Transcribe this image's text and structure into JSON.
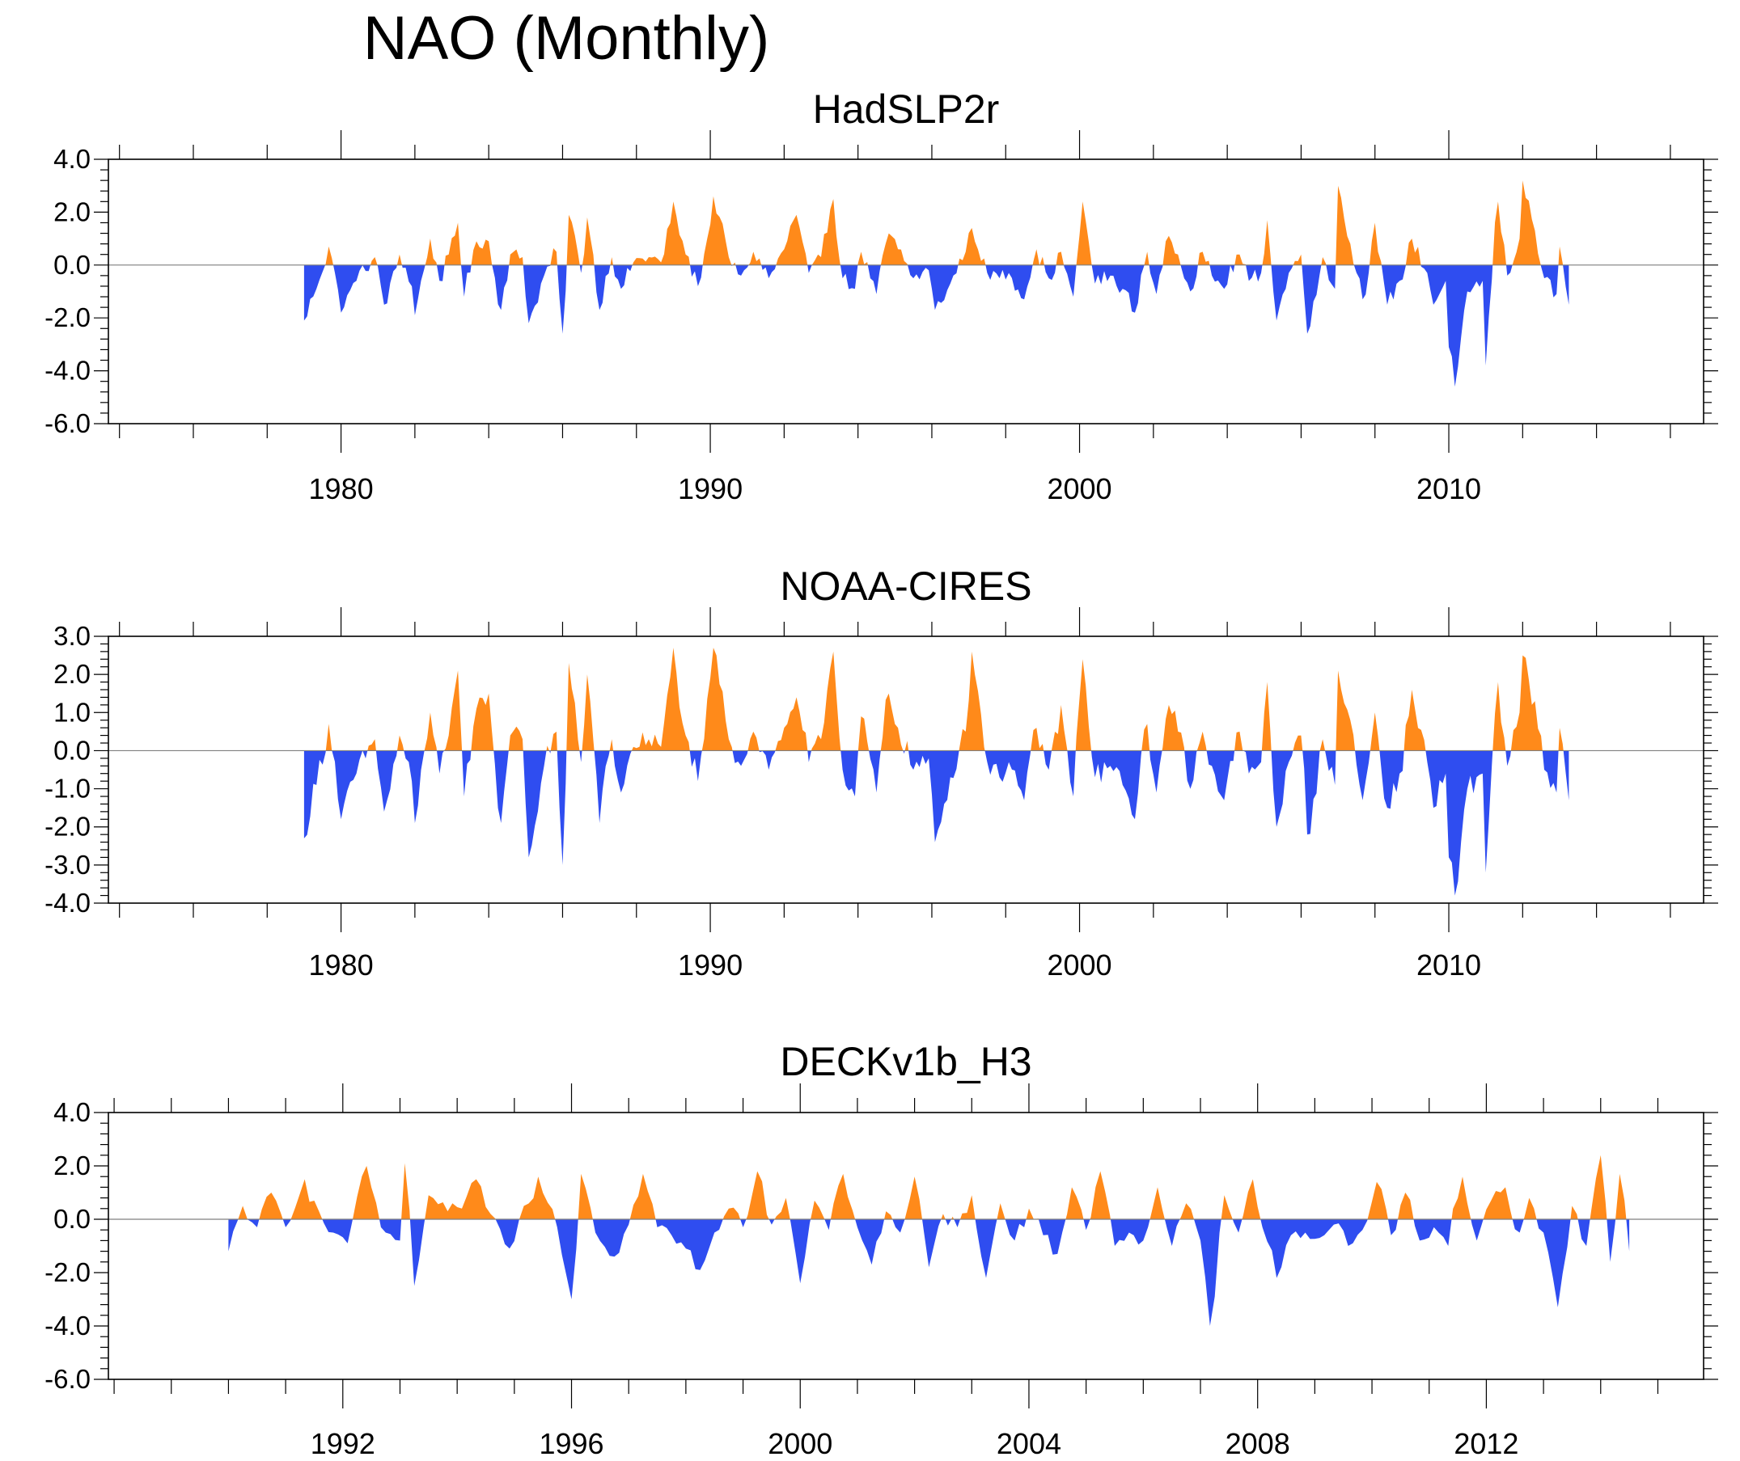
{
  "title": "NAO (Monthly)",
  "colors": {
    "positive": "#ff8a1a",
    "negative": "#2f4df0",
    "axis": "#000000"
  },
  "chart_data": [
    {
      "type": "area",
      "title": "HadSLP2r",
      "x_start": 1979.0,
      "x_end": 2013.25,
      "xlim": [
        1973.7,
        2016.9
      ],
      "xticks": [
        1980,
        1990,
        2000,
        2010
      ],
      "ylim": [
        -6.0,
        4.0
      ],
      "yticks": [
        "4.0",
        "2.0",
        "0.0",
        "-2.0",
        "-4.0",
        "-6.0"
      ],
      "ytick_values": [
        4,
        2,
        0,
        -2,
        -4,
        -6
      ],
      "anchors": [
        [
          1979.0,
          -2.1
        ],
        [
          1979.3,
          -0.9
        ],
        [
          1979.7,
          0.7
        ],
        [
          1980.0,
          -1.8
        ],
        [
          1980.4,
          -0.6
        ],
        [
          1980.9,
          0.3
        ],
        [
          1981.2,
          -1.5
        ],
        [
          1981.6,
          0.4
        ],
        [
          1981.9,
          -0.8
        ],
        [
          1982.0,
          -1.9
        ],
        [
          1982.4,
          1.0
        ],
        [
          1982.7,
          -0.6
        ],
        [
          1982.9,
          0.4
        ],
        [
          1983.2,
          1.6
        ],
        [
          1983.3,
          -1.2
        ],
        [
          1983.7,
          0.9
        ],
        [
          1984.0,
          0.9
        ],
        [
          1984.3,
          -1.7
        ],
        [
          1984.6,
          0.4
        ],
        [
          1984.9,
          0.3
        ],
        [
          1985.1,
          -2.2
        ],
        [
          1985.5,
          -0.4
        ],
        [
          1985.8,
          0.5
        ],
        [
          1986.0,
          -2.6
        ],
        [
          1986.2,
          1.9
        ],
        [
          1986.5,
          -0.3
        ],
        [
          1986.7,
          1.8
        ],
        [
          1987.0,
          -1.7
        ],
        [
          1987.3,
          0.3
        ],
        [
          1987.6,
          -0.9
        ],
        [
          1987.9,
          0.1
        ],
        [
          1988.3,
          0.3
        ],
        [
          1988.7,
          0.1
        ],
        [
          1989.0,
          2.4
        ],
        [
          1989.3,
          0.4
        ],
        [
          1989.7,
          -0.8
        ],
        [
          1990.1,
          2.6
        ],
        [
          1990.5,
          0.3
        ],
        [
          1990.8,
          -0.4
        ],
        [
          1991.2,
          0.5
        ],
        [
          1991.6,
          -0.5
        ],
        [
          1992.0,
          0.6
        ],
        [
          1992.3,
          1.9
        ],
        [
          1992.7,
          -0.3
        ],
        [
          1993.0,
          0.3
        ],
        [
          1993.3,
          2.5
        ],
        [
          1993.6,
          -0.5
        ],
        [
          1993.9,
          -0.9
        ],
        [
          1994.1,
          0.5
        ],
        [
          1994.5,
          -1.1
        ],
        [
          1994.8,
          1.2
        ],
        [
          1995.1,
          0.6
        ],
        [
          1995.5,
          -0.5
        ],
        [
          1995.9,
          -0.2
        ],
        [
          1996.1,
          -1.7
        ],
        [
          1996.5,
          -0.7
        ],
        [
          1996.9,
          0.5
        ],
        [
          1997.1,
          1.4
        ],
        [
          1997.5,
          -0.3
        ],
        [
          1997.8,
          -0.5
        ],
        [
          1998.1,
          -0.3
        ],
        [
          1998.5,
          -1.3
        ],
        [
          1998.8,
          0.6
        ],
        [
          1999.2,
          -0.5
        ],
        [
          1999.5,
          0.5
        ],
        [
          1999.8,
          -1.2
        ],
        [
          2000.1,
          2.4
        ],
        [
          2000.4,
          -0.7
        ],
        [
          2000.8,
          -0.4
        ],
        [
          2001.2,
          -0.9
        ],
        [
          2001.5,
          -1.8
        ],
        [
          2001.8,
          0.5
        ],
        [
          2002.1,
          -1.1
        ],
        [
          2002.4,
          1.1
        ],
        [
          2002.7,
          0.4
        ],
        [
          2003.0,
          -1.0
        ],
        [
          2003.3,
          0.5
        ],
        [
          2003.6,
          -0.4
        ],
        [
          2003.9,
          -0.9
        ],
        [
          2004.3,
          0.4
        ],
        [
          2004.6,
          -0.6
        ],
        [
          2004.9,
          -0.3
        ],
        [
          2005.1,
          1.7
        ],
        [
          2005.3,
          -2.1
        ],
        [
          2005.7,
          -0.3
        ],
        [
          2006.0,
          0.4
        ],
        [
          2006.2,
          -2.6
        ],
        [
          2006.6,
          0.3
        ],
        [
          2006.9,
          -0.9
        ],
        [
          2007.0,
          3.0
        ],
        [
          2007.3,
          0.8
        ],
        [
          2007.7,
          -1.3
        ],
        [
          2008.0,
          1.6
        ],
        [
          2008.3,
          -1.5
        ],
        [
          2008.7,
          -0.6
        ],
        [
          2009.0,
          1.0
        ],
        [
          2009.4,
          -0.3
        ],
        [
          2009.6,
          -1.5
        ],
        [
          2009.9,
          -0.6
        ],
        [
          2010.0,
          -3.1
        ],
        [
          2010.2,
          -4.6
        ],
        [
          2010.5,
          -1.0
        ],
        [
          2010.9,
          -0.6
        ],
        [
          2011.0,
          -3.8
        ],
        [
          2011.3,
          2.4
        ],
        [
          2011.6,
          -0.4
        ],
        [
          2011.9,
          1.0
        ],
        [
          2012.0,
          3.2
        ],
        [
          2012.3,
          1.3
        ],
        [
          2012.6,
          -0.5
        ],
        [
          2012.9,
          -1.1
        ],
        [
          2013.0,
          0.7
        ],
        [
          2013.25,
          -1.5
        ]
      ]
    },
    {
      "type": "area",
      "title": "NOAA-CIRES",
      "x_start": 1979.0,
      "x_end": 2013.25,
      "xlim": [
        1973.7,
        2016.9
      ],
      "xticks": [
        1980,
        1990,
        2000,
        2010
      ],
      "ylim": [
        -4.0,
        3.0
      ],
      "yticks": [
        "3.0",
        "2.0",
        "1.0",
        "0.0",
        "-1.0",
        "-2.0",
        "-3.0",
        "-4.0"
      ],
      "ytick_values": [
        3,
        2,
        1,
        0,
        -1,
        -2,
        -3,
        -4
      ],
      "anchors": [
        [
          1979.0,
          -2.3
        ],
        [
          1979.3,
          -0.9
        ],
        [
          1979.7,
          0.7
        ],
        [
          1980.0,
          -1.8
        ],
        [
          1980.4,
          -0.6
        ],
        [
          1980.9,
          0.3
        ],
        [
          1981.2,
          -1.6
        ],
        [
          1981.6,
          0.4
        ],
        [
          1981.9,
          -0.8
        ],
        [
          1982.0,
          -1.9
        ],
        [
          1982.4,
          1.0
        ],
        [
          1982.7,
          -0.6
        ],
        [
          1982.9,
          0.4
        ],
        [
          1983.2,
          2.1
        ],
        [
          1983.3,
          -1.2
        ],
        [
          1983.7,
          1.1
        ],
        [
          1984.0,
          1.5
        ],
        [
          1984.3,
          -1.9
        ],
        [
          1984.6,
          0.4
        ],
        [
          1984.9,
          0.3
        ],
        [
          1985.1,
          -2.8
        ],
        [
          1985.5,
          -0.4
        ],
        [
          1985.8,
          0.5
        ],
        [
          1986.0,
          -3.0
        ],
        [
          1986.2,
          2.3
        ],
        [
          1986.5,
          -0.3
        ],
        [
          1986.7,
          2.0
        ],
        [
          1987.0,
          -1.9
        ],
        [
          1987.3,
          0.3
        ],
        [
          1987.6,
          -1.1
        ],
        [
          1987.9,
          0.1
        ],
        [
          1988.3,
          0.3
        ],
        [
          1988.7,
          0.1
        ],
        [
          1989.0,
          2.7
        ],
        [
          1989.3,
          0.4
        ],
        [
          1989.7,
          -0.8
        ],
        [
          1990.1,
          2.7
        ],
        [
          1990.5,
          0.3
        ],
        [
          1990.8,
          -0.4
        ],
        [
          1991.2,
          0.5
        ],
        [
          1991.6,
          -0.5
        ],
        [
          1992.0,
          0.6
        ],
        [
          1992.3,
          1.4
        ],
        [
          1992.7,
          -0.3
        ],
        [
          1993.0,
          0.3
        ],
        [
          1993.3,
          2.6
        ],
        [
          1993.6,
          -0.5
        ],
        [
          1993.9,
          -1.2
        ],
        [
          1994.1,
          0.9
        ],
        [
          1994.5,
          -1.1
        ],
        [
          1994.8,
          1.5
        ],
        [
          1995.1,
          0.6
        ],
        [
          1995.5,
          -0.5
        ],
        [
          1995.9,
          -0.2
        ],
        [
          1996.1,
          -2.4
        ],
        [
          1996.5,
          -0.7
        ],
        [
          1996.9,
          0.5
        ],
        [
          1997.1,
          2.6
        ],
        [
          1997.5,
          -0.3
        ],
        [
          1997.8,
          -0.7
        ],
        [
          1998.1,
          -0.3
        ],
        [
          1998.5,
          -1.3
        ],
        [
          1998.8,
          0.6
        ],
        [
          1999.2,
          -0.5
        ],
        [
          1999.5,
          1.2
        ],
        [
          1999.8,
          -1.2
        ],
        [
          2000.1,
          2.4
        ],
        [
          2000.4,
          -0.7
        ],
        [
          2000.8,
          -0.4
        ],
        [
          2001.2,
          -0.9
        ],
        [
          2001.5,
          -1.8
        ],
        [
          2001.8,
          0.7
        ],
        [
          2002.1,
          -1.1
        ],
        [
          2002.4,
          1.2
        ],
        [
          2002.7,
          0.5
        ],
        [
          2003.0,
          -1.0
        ],
        [
          2003.3,
          0.5
        ],
        [
          2003.6,
          -0.4
        ],
        [
          2003.9,
          -1.3
        ],
        [
          2004.3,
          0.5
        ],
        [
          2004.6,
          -0.6
        ],
        [
          2004.9,
          -0.3
        ],
        [
          2005.1,
          1.8
        ],
        [
          2005.3,
          -2.0
        ],
        [
          2005.7,
          -0.3
        ],
        [
          2006.0,
          0.4
        ],
        [
          2006.2,
          -2.2
        ],
        [
          2006.6,
          0.3
        ],
        [
          2006.9,
          -0.9
        ],
        [
          2007.0,
          2.1
        ],
        [
          2007.3,
          0.8
        ],
        [
          2007.7,
          -1.3
        ],
        [
          2008.0,
          1.0
        ],
        [
          2008.3,
          -1.5
        ],
        [
          2008.7,
          -0.6
        ],
        [
          2009.0,
          1.6
        ],
        [
          2009.4,
          -0.3
        ],
        [
          2009.6,
          -1.5
        ],
        [
          2009.9,
          -0.6
        ],
        [
          2010.0,
          -2.8
        ],
        [
          2010.2,
          -3.8
        ],
        [
          2010.5,
          -1.0
        ],
        [
          2010.9,
          -0.6
        ],
        [
          2011.0,
          -3.2
        ],
        [
          2011.3,
          1.8
        ],
        [
          2011.6,
          -0.4
        ],
        [
          2011.9,
          1.0
        ],
        [
          2012.0,
          2.5
        ],
        [
          2012.3,
          1.3
        ],
        [
          2012.6,
          -0.5
        ],
        [
          2012.9,
          -1.1
        ],
        [
          2013.0,
          0.6
        ],
        [
          2013.25,
          -1.3
        ]
      ]
    },
    {
      "type": "area",
      "title": "DECKv1b_H3",
      "x_start": 1990.0,
      "x_end": 2014.5,
      "xlim": [
        1987.9,
        2015.8
      ],
      "xticks": [
        1992,
        1996,
        2000,
        2004,
        2008,
        2012
      ],
      "ylim": [
        -6.0,
        4.0
      ],
      "yticks": [
        "4.0",
        "2.0",
        "0.0",
        "-2.0",
        "-4.0",
        "-6.0"
      ],
      "ytick_values": [
        4,
        2,
        0,
        -2,
        -4,
        -6
      ],
      "anchors": [
        [
          1990.0,
          -1.2
        ],
        [
          1990.25,
          0.5
        ],
        [
          1990.5,
          -0.3
        ],
        [
          1990.75,
          1.0
        ],
        [
          1991.0,
          -0.3
        ],
        [
          1991.3,
          1.5
        ],
        [
          1991.55,
          0.3
        ],
        [
          1991.8,
          -0.5
        ],
        [
          1992.1,
          -0.9
        ],
        [
          1992.4,
          2.0
        ],
        [
          1992.7,
          -0.3
        ],
        [
          1993.0,
          -0.8
        ],
        [
          1993.1,
          2.1
        ],
        [
          1993.25,
          -2.5
        ],
        [
          1993.5,
          0.9
        ],
        [
          1993.8,
          0.3
        ],
        [
          1994.1,
          0.4
        ],
        [
          1994.35,
          1.5
        ],
        [
          1994.6,
          0.2
        ],
        [
          1994.9,
          -1.1
        ],
        [
          1995.2,
          0.5
        ],
        [
          1995.45,
          1.6
        ],
        [
          1995.75,
          -0.3
        ],
        [
          1996.0,
          -3.0
        ],
        [
          1996.2,
          1.7
        ],
        [
          1996.45,
          -0.5
        ],
        [
          1996.75,
          -1.4
        ],
        [
          1997.0,
          -0.2
        ],
        [
          1997.25,
          1.7
        ],
        [
          1997.5,
          -0.3
        ],
        [
          1997.75,
          -0.6
        ],
        [
          1998.0,
          -1.1
        ],
        [
          1998.25,
          -1.9
        ],
        [
          1998.5,
          -0.5
        ],
        [
          1998.75,
          0.4
        ],
        [
          1999.0,
          -0.3
        ],
        [
          1999.25,
          1.8
        ],
        [
          1999.5,
          -0.2
        ],
        [
          1999.75,
          0.8
        ],
        [
          2000.0,
          -2.4
        ],
        [
          2000.25,
          0.7
        ],
        [
          2000.5,
          -0.4
        ],
        [
          2000.75,
          1.7
        ],
        [
          2001.0,
          -0.3
        ],
        [
          2001.25,
          -1.7
        ],
        [
          2001.5,
          0.3
        ],
        [
          2001.75,
          -0.5
        ],
        [
          2002.0,
          1.6
        ],
        [
          2002.25,
          -1.8
        ],
        [
          2002.5,
          0.2
        ],
        [
          2002.75,
          -0.3
        ],
        [
          2003.0,
          0.9
        ],
        [
          2003.25,
          -2.2
        ],
        [
          2003.5,
          0.6
        ],
        [
          2003.75,
          -0.8
        ],
        [
          2004.0,
          0.4
        ],
        [
          2004.25,
          -0.6
        ],
        [
          2004.5,
          -1.3
        ],
        [
          2004.75,
          1.2
        ],
        [
          2005.0,
          -0.4
        ],
        [
          2005.25,
          1.8
        ],
        [
          2005.5,
          -1.0
        ],
        [
          2005.75,
          -0.5
        ],
        [
          2006.0,
          -0.8
        ],
        [
          2006.25,
          1.2
        ],
        [
          2006.5,
          -1.0
        ],
        [
          2006.75,
          0.6
        ],
        [
          2007.0,
          -0.8
        ],
        [
          2007.2,
          -4.0
        ],
        [
          2007.4,
          0.9
        ],
        [
          2007.65,
          -0.5
        ],
        [
          2007.9,
          1.5
        ],
        [
          2008.1,
          -0.3
        ],
        [
          2008.35,
          -2.2
        ],
        [
          2008.6,
          -0.6
        ],
        [
          2008.85,
          -0.5
        ],
        [
          2009.1,
          -0.7
        ],
        [
          2009.35,
          -0.2
        ],
        [
          2009.6,
          -1.0
        ],
        [
          2009.85,
          -0.4
        ],
        [
          2010.1,
          1.4
        ],
        [
          2010.35,
          -0.6
        ],
        [
          2010.6,
          1.0
        ],
        [
          2010.85,
          -0.8
        ],
        [
          2011.1,
          -0.3
        ],
        [
          2011.3,
          -1.0
        ],
        [
          2011.55,
          1.6
        ],
        [
          2011.8,
          -0.8
        ],
        [
          2012.05,
          0.7
        ],
        [
          2012.3,
          1.2
        ],
        [
          2012.55,
          -0.5
        ],
        [
          2012.75,
          0.8
        ],
        [
          2013.0,
          -0.5
        ],
        [
          2013.25,
          -3.3
        ],
        [
          2013.5,
          0.5
        ],
        [
          2013.75,
          -1.0
        ],
        [
          2014.0,
          2.4
        ],
        [
          2014.2,
          -1.6
        ],
        [
          2014.35,
          1.7
        ],
        [
          2014.45,
          0.7
        ],
        [
          2014.5,
          -1.2
        ]
      ]
    }
  ]
}
